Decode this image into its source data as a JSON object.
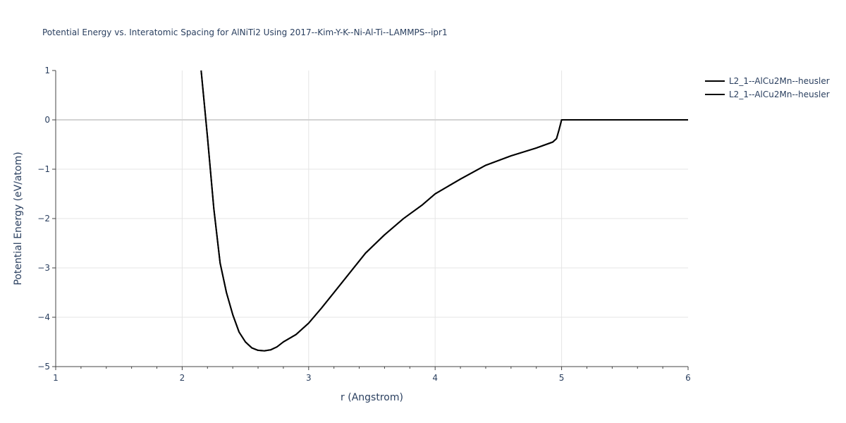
{
  "chart_data": {
    "type": "line",
    "title": "Potential Energy vs. Interatomic Spacing for AlNiTi2 Using 2017--Kim-Y-K--Ni-Al-Ti--LAMMPS--ipr1",
    "xlabel": "r (Angstrom)",
    "ylabel": "Potential Energy (eV/atom)",
    "xlim": [
      1,
      6
    ],
    "ylim": [
      -5,
      1
    ],
    "x_ticks": [
      "1",
      "2",
      "3",
      "4",
      "5",
      "6"
    ],
    "y_ticks": [
      "1",
      "0",
      "−1",
      "−2",
      "−3",
      "−4",
      "−5"
    ],
    "grid": true,
    "legend_position": "top-right",
    "colors": {
      "series": "#000000",
      "grid": "#e5e5e5",
      "zeroline": "#d3d3d3",
      "text": "#2a3f5f"
    },
    "series": [
      {
        "name": "L2_1--AlCu2Mn--heusler",
        "x": [
          2.15,
          2.2,
          2.25,
          2.3,
          2.35,
          2.4,
          2.45,
          2.5,
          2.55,
          2.6,
          2.65,
          2.7,
          2.75,
          2.8,
          2.9,
          3.0,
          3.1,
          3.2,
          3.3,
          3.45,
          3.6,
          3.75,
          3.9,
          4.0,
          4.2,
          4.4,
          4.6,
          4.8,
          4.93,
          4.96,
          4.98,
          5.0,
          5.5,
          6.0
        ],
        "y": [
          1.0,
          -0.35,
          -1.8,
          -2.9,
          -3.5,
          -3.95,
          -4.3,
          -4.5,
          -4.62,
          -4.67,
          -4.68,
          -4.66,
          -4.6,
          -4.5,
          -4.35,
          -4.12,
          -3.82,
          -3.5,
          -3.18,
          -2.7,
          -2.33,
          -2.0,
          -1.72,
          -1.5,
          -1.2,
          -0.92,
          -0.73,
          -0.57,
          -0.45,
          -0.38,
          -0.2,
          0.0,
          0.0,
          0.0
        ]
      },
      {
        "name": "L2_1--AlCu2Mn--heusler",
        "x": [
          2.15,
          2.2,
          2.25,
          2.3,
          2.35,
          2.4,
          2.45,
          2.5,
          2.55,
          2.6,
          2.65,
          2.7,
          2.75,
          2.8,
          2.9,
          3.0,
          3.1,
          3.2,
          3.3,
          3.45,
          3.6,
          3.75,
          3.9,
          4.0,
          4.2,
          4.4,
          4.6,
          4.8,
          4.93,
          4.96,
          4.98,
          5.0,
          5.5,
          6.0
        ],
        "y": [
          1.0,
          -0.35,
          -1.8,
          -2.9,
          -3.5,
          -3.95,
          -4.3,
          -4.5,
          -4.62,
          -4.67,
          -4.68,
          -4.66,
          -4.6,
          -4.5,
          -4.35,
          -4.12,
          -3.82,
          -3.5,
          -3.18,
          -2.7,
          -2.33,
          -2.0,
          -1.72,
          -1.5,
          -1.2,
          -0.92,
          -0.73,
          -0.57,
          -0.45,
          -0.38,
          -0.2,
          0.0,
          0.0,
          0.0
        ]
      }
    ]
  }
}
